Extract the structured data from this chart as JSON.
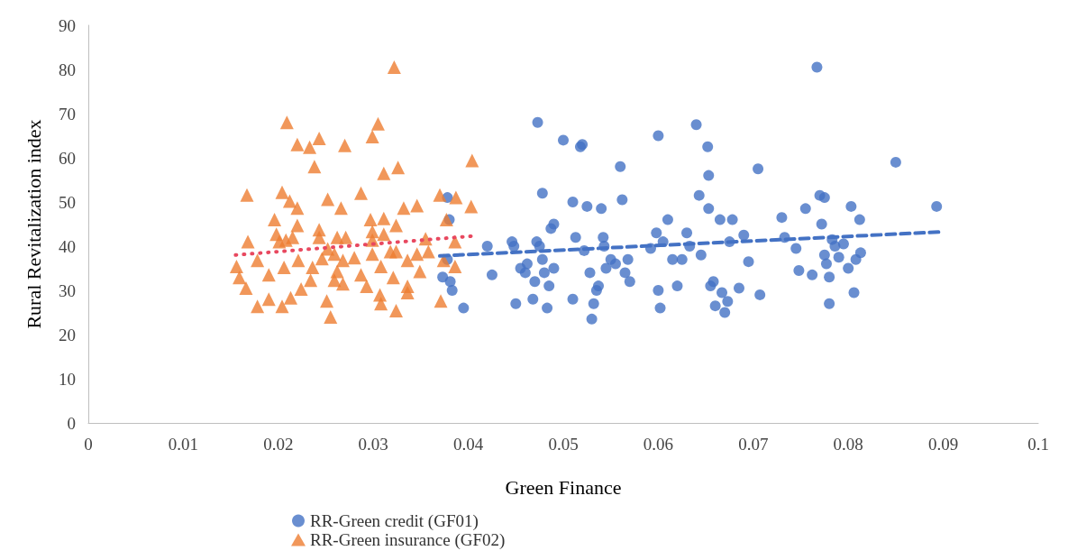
{
  "chart_data": {
    "type": "scatter",
    "xlabel": "Green Finance",
    "ylabel": "Rural Revitalization index",
    "xlim": [
      0,
      0.1
    ],
    "xticks": [
      0,
      0.01,
      0.02,
      0.03,
      0.04,
      0.05,
      0.06,
      0.07,
      0.08,
      0.09,
      0.1
    ],
    "ylim": [
      0,
      90
    ],
    "yticks": [
      0,
      10,
      20,
      30,
      40,
      50,
      60,
      70,
      80,
      90
    ],
    "grid": false,
    "legend": "bottom",
    "series": [
      {
        "name": "RR-Green credit (GF01)",
        "color": "#4472c4",
        "marker": "circle",
        "x": [
          0.0373,
          0.0378,
          0.038,
          0.0378,
          0.0381,
          0.0383,
          0.0395,
          0.042,
          0.0425,
          0.0446,
          0.0448,
          0.045,
          0.0455,
          0.046,
          0.0462,
          0.0468,
          0.047,
          0.0472,
          0.0473,
          0.0475,
          0.0478,
          0.0478,
          0.048,
          0.0483,
          0.0485,
          0.0487,
          0.049,
          0.049,
          0.05,
          0.051,
          0.051,
          0.0513,
          0.0518,
          0.052,
          0.0522,
          0.0525,
          0.0528,
          0.053,
          0.0532,
          0.0535,
          0.0537,
          0.054,
          0.0542,
          0.0543,
          0.0545,
          0.055,
          0.0555,
          0.056,
          0.0562,
          0.0565,
          0.0568,
          0.057,
          0.0592,
          0.0598,
          0.06,
          0.06,
          0.0602,
          0.0605,
          0.061,
          0.0615,
          0.062,
          0.0625,
          0.063,
          0.0633,
          0.064,
          0.0643,
          0.0645,
          0.0652,
          0.0653,
          0.0653,
          0.0655,
          0.0658,
          0.066,
          0.0665,
          0.0667,
          0.067,
          0.0673,
          0.0675,
          0.0678,
          0.0685,
          0.069,
          0.0695,
          0.0705,
          0.0707,
          0.073,
          0.0733,
          0.0745,
          0.0748,
          0.0755,
          0.0762,
          0.0767,
          0.077,
          0.0772,
          0.0775,
          0.0775,
          0.0777,
          0.078,
          0.078,
          0.0783,
          0.0786,
          0.079,
          0.0795,
          0.08,
          0.0803,
          0.0806,
          0.0808,
          0.0812,
          0.0813,
          0.085,
          0.0893
        ],
        "values": [
          33,
          51,
          46,
          37,
          32,
          30,
          26,
          40,
          33.5,
          41,
          40,
          27,
          35,
          34,
          36,
          28,
          32,
          41,
          68,
          40,
          52,
          37,
          34,
          26,
          31,
          44,
          45,
          35,
          64,
          50,
          28,
          42,
          62.5,
          63,
          39,
          49,
          34,
          23.5,
          27,
          30,
          31,
          48.5,
          42,
          40,
          35,
          37,
          36,
          58,
          50.5,
          34,
          37,
          32,
          39.5,
          43,
          65,
          30,
          26,
          41,
          46,
          37,
          31,
          37,
          43,
          40,
          67.5,
          51.5,
          38,
          62.5,
          56,
          48.5,
          31,
          32,
          26.5,
          46,
          29.5,
          25,
          27.5,
          41,
          46,
          30.5,
          42.5,
          36.5,
          57.5,
          29,
          46.5,
          42,
          39.5,
          34.5,
          48.5,
          33.5,
          80.5,
          51.5,
          45,
          51,
          38,
          36,
          33,
          27,
          41.5,
          40,
          37.5,
          40.5,
          35,
          49,
          29.5,
          37,
          46,
          38.5,
          59,
          49
        ]
      },
      {
        "name": "RR-Green insurance (GF02)",
        "color": "#ed7d31",
        "marker": "triangle",
        "x": [
          0.0322,
          0.0209,
          0.0305,
          0.0299,
          0.022,
          0.0233,
          0.0243,
          0.027,
          0.0238,
          0.0311,
          0.0326,
          0.0404,
          0.0167,
          0.0204,
          0.0212,
          0.022,
          0.0252,
          0.0266,
          0.0287,
          0.037,
          0.0387,
          0.0403,
          0.0332,
          0.0346,
          0.0196,
          0.022,
          0.0297,
          0.0311,
          0.0324,
          0.0377,
          0.0243,
          0.0168,
          0.0201,
          0.0215,
          0.0262,
          0.0271,
          0.0299,
          0.0311,
          0.0355,
          0.0386,
          0.0178,
          0.0156,
          0.0159,
          0.0166,
          0.019,
          0.0206,
          0.0221,
          0.0236,
          0.0246,
          0.0259,
          0.0262,
          0.0259,
          0.0268,
          0.028,
          0.0287,
          0.0293,
          0.0299,
          0.0308,
          0.0324,
          0.0336,
          0.0346,
          0.0321,
          0.0336,
          0.0349,
          0.0358,
          0.0374,
          0.0386,
          0.0178,
          0.019,
          0.0204,
          0.0213,
          0.0224,
          0.0234,
          0.0251,
          0.0255,
          0.0307,
          0.0308,
          0.0324,
          0.0336,
          0.0371,
          0.0198,
          0.0243,
          0.0208,
          0.0299,
          0.0318,
          0.0252,
          0.0268
        ],
        "values": [
          80.5,
          68,
          67.7,
          64.8,
          63,
          62.4,
          64.4,
          62.8,
          58,
          56.5,
          57.8,
          59.4,
          51.6,
          52.2,
          50.2,
          48.6,
          50.6,
          48.6,
          52,
          51.6,
          51,
          49,
          48.6,
          49.2,
          46,
          44.7,
          46,
          46.3,
          44.7,
          46,
          43.7,
          41,
          41,
          42,
          42,
          42,
          43.3,
          42.7,
          41.7,
          41,
          36.8,
          35.4,
          32.9,
          30.5,
          33.5,
          35.2,
          36.8,
          35.2,
          37.2,
          38.2,
          34.3,
          32.3,
          31.5,
          37.4,
          33.5,
          30.9,
          38.2,
          35.4,
          38.8,
          36.8,
          38.2,
          32.9,
          30.9,
          34.3,
          38.8,
          36.8,
          35.4,
          26.4,
          28,
          26.4,
          28.3,
          30.3,
          32.3,
          27.6,
          24,
          29,
          27,
          25.4,
          29.5,
          27.6,
          42.7,
          42,
          41.4,
          41.4,
          38.8,
          39.4,
          36.8
        ]
      },
      {
        "type": "line",
        "color": "#e8485f",
        "line_style": "dotted",
        "x": [
          0.0155,
          0.0405
        ],
        "values": [
          38,
          42.3
        ]
      },
      {
        "type": "line",
        "color": "#4472c4",
        "line_style": "dashed",
        "x": [
          0.037,
          0.0895
        ],
        "values": [
          37.8,
          43.2
        ]
      }
    ]
  }
}
